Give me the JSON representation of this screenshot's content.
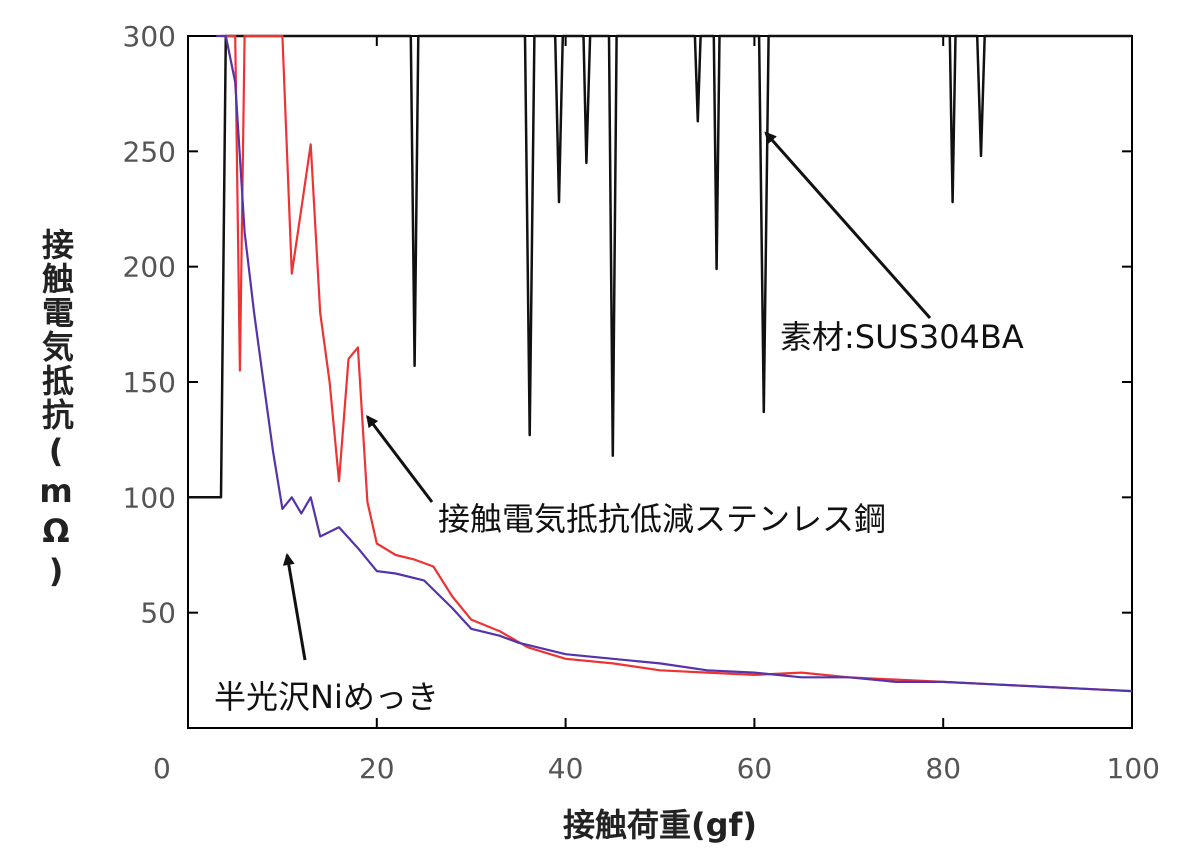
{
  "chart_data": {
    "type": "line",
    "xlabel": "接触荷重(gf)",
    "ylabel": "接触電気抵抗(mΩ)",
    "xlim": [
      0,
      100
    ],
    "ylim": [
      0,
      300
    ],
    "xticks": [
      "0",
      "20",
      "40",
      "60",
      "80",
      "100"
    ],
    "yticks": [
      "50",
      "100",
      "150",
      "200",
      "250",
      "300"
    ],
    "series": [
      {
        "name": "素材:SUS304BA",
        "color": "#111111",
        "x": [
          0,
          3.5,
          4,
          4.3,
          23.6,
          24,
          24.4,
          35.7,
          36.2,
          36.7,
          38.9,
          39.3,
          39.7,
          41.9,
          42.2,
          42.6,
          44.6,
          45,
          45.4,
          53.7,
          54,
          54.3,
          55.7,
          56,
          56.3,
          60.5,
          61,
          61.5,
          80.7,
          81,
          81.3,
          83.6,
          84,
          84.4,
          100
        ],
        "y": [
          100,
          100,
          300,
          300,
          300,
          157,
          300,
          300,
          127,
          300,
          300,
          228,
          300,
          300,
          245,
          300,
          300,
          118,
          300,
          300,
          263,
          300,
          300,
          199,
          300,
          300,
          137,
          300,
          300,
          228,
          300,
          300,
          248,
          300,
          300
        ]
      },
      {
        "name": "接触電気抵抗低減ステンレス鋼",
        "color": "#ee3333",
        "x": [
          3.5,
          4,
          5,
          5.5,
          6,
          8,
          9,
          10,
          11,
          12,
          13,
          14,
          15,
          16,
          17,
          18,
          19,
          20,
          22,
          24,
          26,
          28,
          30,
          33,
          36,
          40,
          45,
          50,
          55,
          60,
          65,
          70,
          75,
          80,
          85,
          90,
          95,
          100
        ],
        "y": [
          300,
          300,
          300,
          155,
          300,
          300,
          300,
          300,
          197,
          225,
          253,
          180,
          150,
          107,
          160,
          165,
          98,
          80,
          75,
          73,
          70,
          57,
          47,
          42,
          35,
          30,
          28,
          25,
          24,
          23,
          24,
          22,
          21,
          20,
          19,
          18,
          17,
          16
        ]
      },
      {
        "name": "半光沢Niめっき",
        "color": "#5533aa",
        "x": [
          3,
          4,
          5,
          6,
          7,
          8,
          9,
          10,
          11,
          12,
          13,
          14,
          15,
          16,
          18,
          20,
          22,
          25,
          28,
          30,
          33,
          35,
          40,
          45,
          50,
          55,
          60,
          65,
          70,
          75,
          80,
          85,
          90,
          95,
          100
        ],
        "y": [
          300,
          300,
          280,
          215,
          180,
          150,
          120,
          95,
          100,
          93,
          100,
          83,
          85,
          87,
          78,
          68,
          67,
          64,
          52,
          43,
          40,
          37,
          32,
          30,
          28,
          25,
          24,
          22,
          22,
          20,
          20,
          19,
          18,
          17,
          16
        ]
      }
    ],
    "annotations": [
      {
        "text": "素材:SUS304BA",
        "target": "SUS304BA series",
        "arrow_tip": [
          61.2,
          258
        ]
      },
      {
        "text": "接触電気抵抗低減ステンレス鋼",
        "target": "red series",
        "arrow_tip": [
          19,
          135
        ]
      },
      {
        "text": "半光沢Niめっき",
        "target": "purple series",
        "arrow_tip": [
          10.5,
          75
        ]
      }
    ]
  }
}
